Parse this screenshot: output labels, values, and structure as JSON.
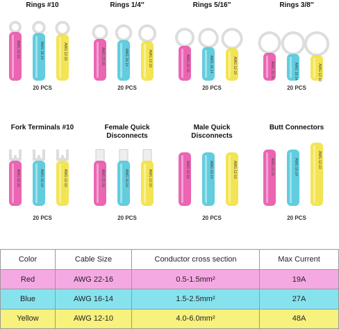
{
  "groups": [
    {
      "title": "Rings #10",
      "count": "20 PCS"
    },
    {
      "title": "Rings 1/4″",
      "count": "20 PCS"
    },
    {
      "title": "Rings 5/16″",
      "count": "20 PCS"
    },
    {
      "title": "Rings 3/8″",
      "count": "20 PCS"
    },
    {
      "title": "Fork Terminals #10",
      "count": "20 PCS"
    },
    {
      "title": "Female Quick Disconnects",
      "count": "20 PCS"
    },
    {
      "title": "Male Quick Disconnects",
      "count": "20 PCS"
    },
    {
      "title": "Butt Connectors",
      "count": "20 PCS"
    }
  ],
  "sleeve_labels": [
    "AWG 22-16",
    "AWG 16-14",
    "AWG 12-10"
  ],
  "table": {
    "header": [
      "Color",
      "Cable Size",
      "Conductor cross section",
      "Max Current"
    ],
    "rows": [
      [
        "Red",
        "AWG 22-16",
        "0.5-1.5mm²",
        "19A"
      ],
      [
        "Blue",
        "AWG 16-14",
        "1.5-2.5mm²",
        "27A"
      ],
      [
        "Yellow",
        "AWG 12-10",
        "4.0-6.0mm²",
        "48A"
      ]
    ]
  }
}
